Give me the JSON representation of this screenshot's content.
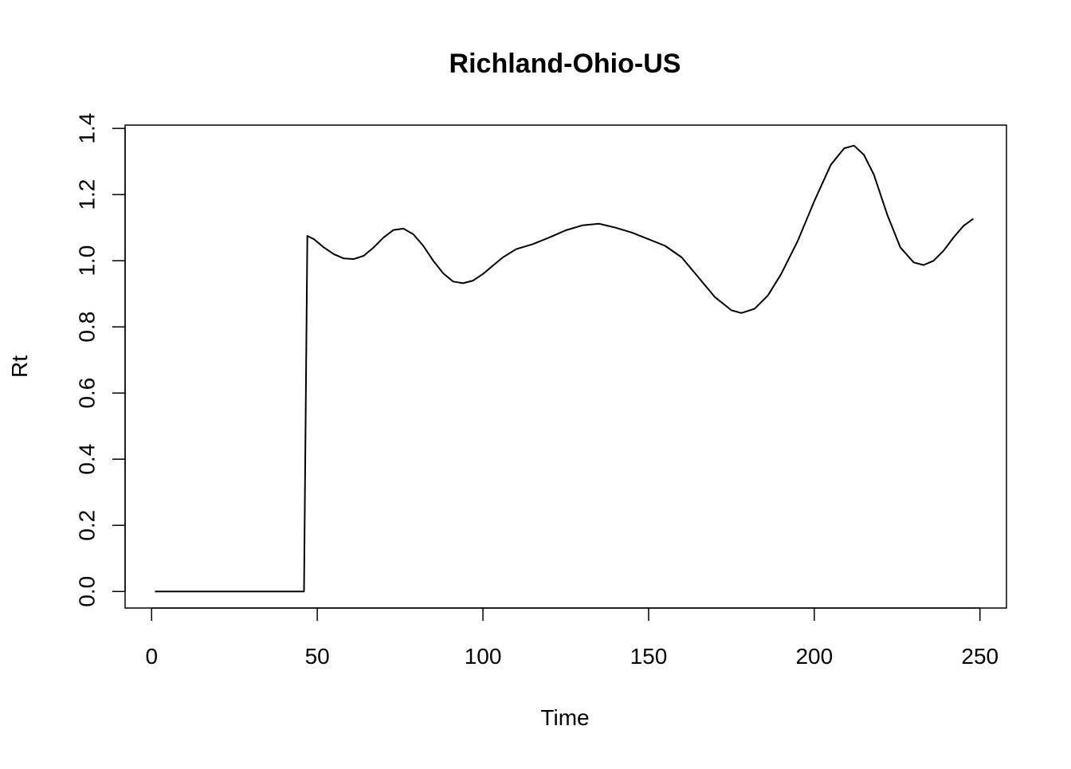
{
  "chart_data": {
    "type": "line",
    "title": "Richland-Ohio-US",
    "xlabel": "Time",
    "ylabel": "Rt",
    "xlim": [
      -8,
      258
    ],
    "ylim": [
      -0.05,
      1.41
    ],
    "xticks": [
      0,
      50,
      100,
      150,
      200,
      250
    ],
    "yticks": [
      0.0,
      0.2,
      0.4,
      0.6,
      0.8,
      1.0,
      1.2,
      1.4
    ],
    "xtick_labels": [
      "0",
      "50",
      "100",
      "150",
      "200",
      "250"
    ],
    "ytick_labels": [
      "0.0",
      "0.2",
      "0.4",
      "0.6",
      "0.8",
      "1.0",
      "1.2",
      "1.4"
    ],
    "grid": false,
    "legend": "none",
    "line_color": "#000000",
    "series": [
      {
        "x": [
          1,
          46,
          47,
          49,
          52,
          55,
          58,
          61,
          64,
          67,
          70,
          73,
          76,
          79,
          82,
          85,
          88,
          91,
          94,
          97,
          100,
          103,
          106,
          110,
          115,
          120,
          125,
          130,
          135,
          140,
          145,
          150,
          155,
          160,
          165,
          170,
          175,
          178,
          182,
          186,
          190,
          195,
          200,
          205,
          209,
          212,
          215,
          218,
          222,
          226,
          230,
          233,
          236,
          239,
          242,
          245,
          248
        ],
        "y": [
          0.0,
          0.0,
          1.075,
          1.065,
          1.04,
          1.02,
          1.007,
          1.005,
          1.015,
          1.04,
          1.07,
          1.093,
          1.097,
          1.08,
          1.045,
          1.0,
          0.962,
          0.937,
          0.932,
          0.94,
          0.96,
          0.985,
          1.01,
          1.035,
          1.05,
          1.07,
          1.092,
          1.107,
          1.112,
          1.1,
          1.085,
          1.065,
          1.045,
          1.01,
          0.95,
          0.89,
          0.85,
          0.842,
          0.855,
          0.895,
          0.96,
          1.06,
          1.18,
          1.29,
          1.34,
          1.348,
          1.32,
          1.26,
          1.14,
          1.04,
          0.995,
          0.987,
          1.0,
          1.03,
          1.07,
          1.105,
          1.127
        ]
      }
    ]
  }
}
